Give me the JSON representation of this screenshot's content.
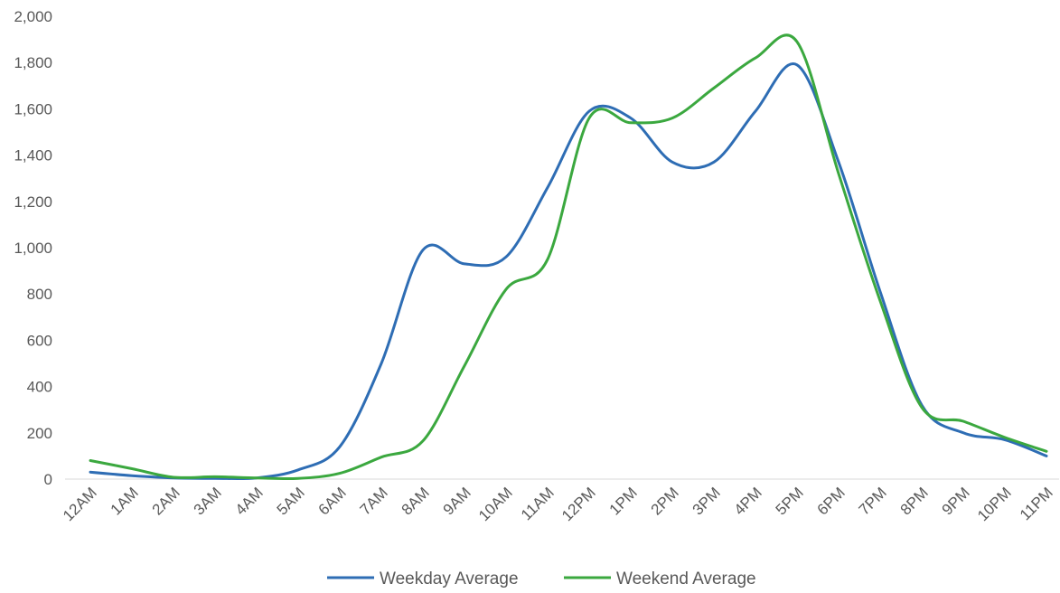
{
  "chart_data": {
    "type": "line",
    "categories": [
      "12AM",
      "1AM",
      "2AM",
      "3AM",
      "4AM",
      "5AM",
      "6AM",
      "7AM",
      "8AM",
      "9AM",
      "10AM",
      "11AM",
      "12PM",
      "1PM",
      "2PM",
      "3PM",
      "4PM",
      "5PM",
      "6PM",
      "7PM",
      "8PM",
      "9PM",
      "10PM",
      "11PM"
    ],
    "series": [
      {
        "name": "Weekday Average",
        "color": "#2E6DB4",
        "values": [
          30,
          15,
          5,
          3,
          5,
          40,
          140,
          500,
          990,
          930,
          960,
          1260,
          1590,
          1560,
          1370,
          1370,
          1590,
          1790,
          1370,
          810,
          320,
          200,
          170,
          100
        ]
      },
      {
        "name": "Weekend Average",
        "color": "#3BA83F",
        "values": [
          80,
          45,
          8,
          10,
          5,
          3,
          25,
          95,
          165,
          490,
          820,
          950,
          1560,
          1540,
          1560,
          1690,
          1820,
          1890,
          1320,
          770,
          310,
          250,
          180,
          120
        ]
      }
    ],
    "ylim": [
      0,
      2000
    ],
    "yticks": [
      "0",
      "200",
      "400",
      "600",
      "800",
      "1,000",
      "1,200",
      "1,400",
      "1,600",
      "1,800",
      "2,000"
    ],
    "grid": false,
    "legend_position": "bottom"
  }
}
